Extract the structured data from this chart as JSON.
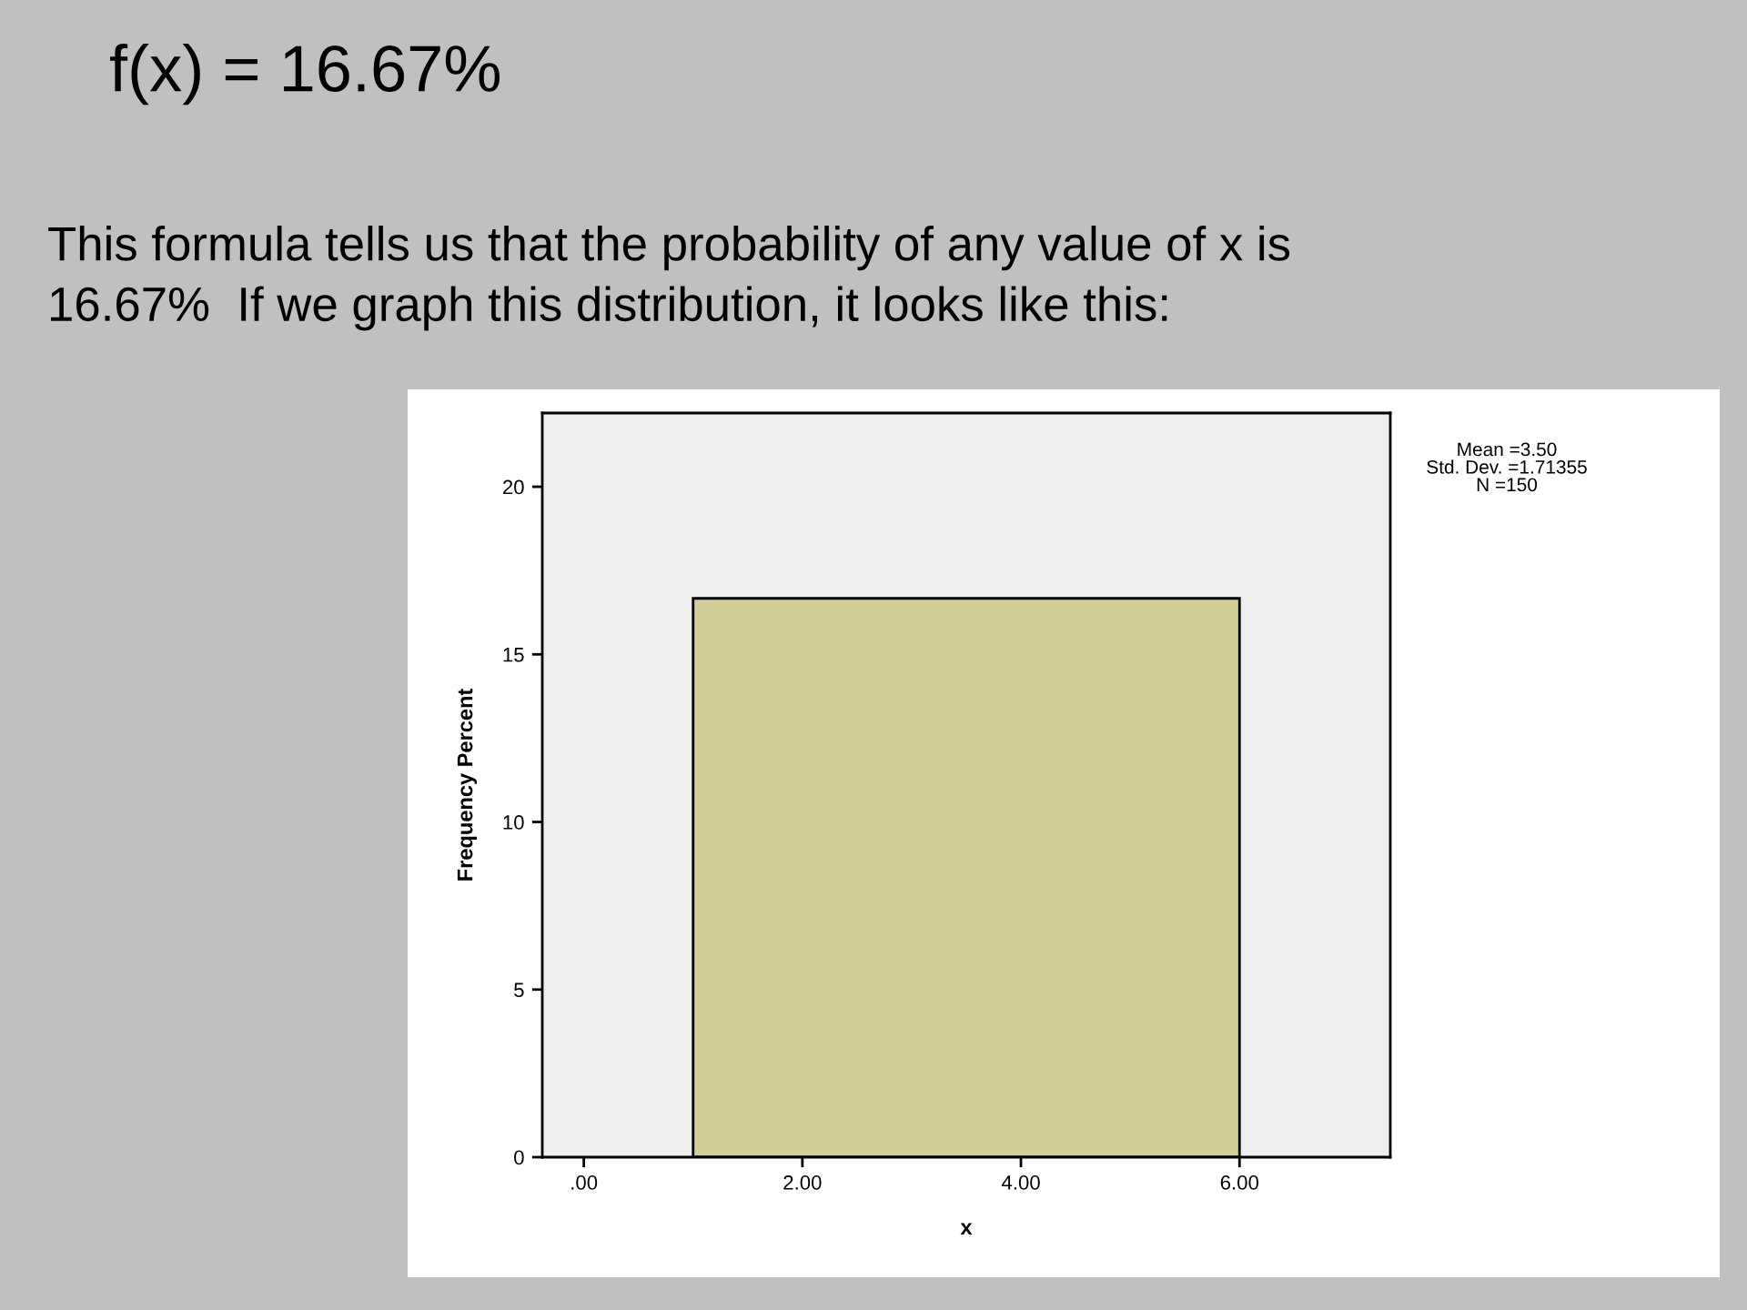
{
  "chart_data": {
    "type": "histogram",
    "title": "f(x) = 16.67%",
    "subtitle": "This formula tells us that the probability of any value of x is\n16.67%  If we graph this distribution, it looks like this:",
    "xlabel": "x",
    "ylabel": "Frequency Percent",
    "bins": [
      1,
      6
    ],
    "values": [
      16.67
    ],
    "color": "#d3ce97",
    "xlim": [
      -0.38,
      7.38
    ],
    "xticks": [
      {
        "value": 0,
        "label": ".00"
      },
      {
        "value": 2,
        "label": "2.00"
      },
      {
        "value": 4,
        "label": "4.00"
      },
      {
        "value": 6,
        "label": "6.00"
      }
    ],
    "ylim": [
      0,
      22.2
    ],
    "yticks": [
      0,
      5,
      10,
      15,
      20
    ],
    "annotations": [
      "Mean =3.50\nStd. Dev. =1.71355\nN =150"
    ],
    "grid": false,
    "legend": false
  }
}
